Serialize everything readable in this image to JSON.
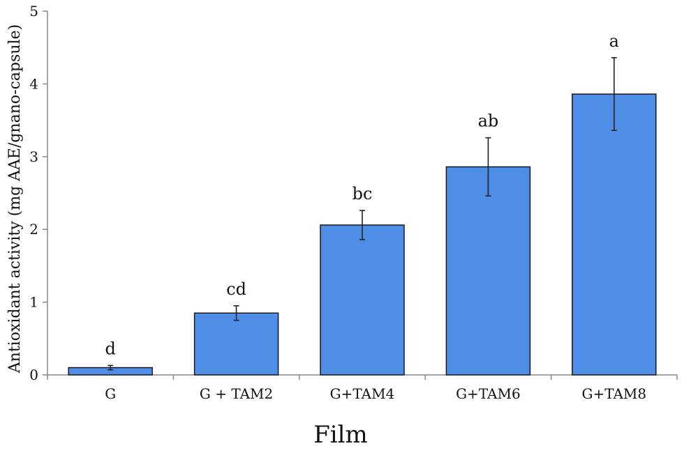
{
  "chart_data": {
    "type": "bar",
    "title": "",
    "xlabel": "Film",
    "ylabel": "Antioxidant activity (mg AAE/gnano-capsule)",
    "ylim": [
      0,
      5
    ],
    "yticks": [
      "0",
      "1",
      "2",
      "3",
      "4",
      "5"
    ],
    "grid": false,
    "legend": "none",
    "categories": [
      "G",
      "G + TAM2",
      "G+TAM4",
      "G+TAM6",
      "G+TAM8"
    ],
    "values": [
      0.1,
      0.85,
      2.06,
      2.86,
      3.86
    ],
    "errors": [
      0.03,
      0.1,
      0.2,
      0.4,
      0.5
    ],
    "significance_letters": [
      "d",
      "cd",
      "bc",
      "ab",
      "a"
    ],
    "bar_color": "#4f8ee6",
    "bar_edge_color": "#1a1a1a"
  }
}
